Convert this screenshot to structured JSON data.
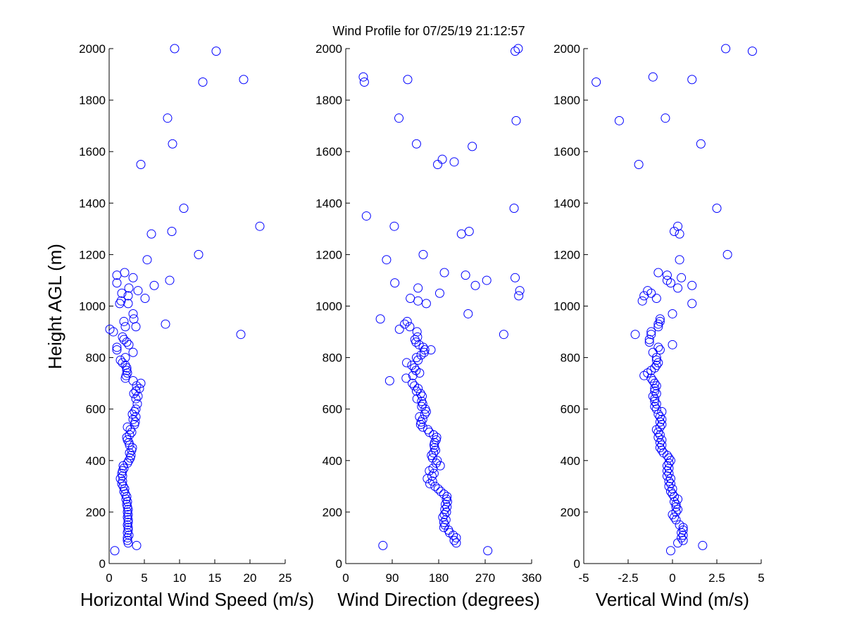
{
  "title": "Wind Profile for  07/25/19 21:12:57",
  "ylabel": "Height AGL (m)",
  "marker_color": "#0000ff",
  "chart_data": [
    {
      "type": "scatter",
      "xlabel": "Horizontal Wind Speed (m/s)",
      "xlim": [
        0,
        25
      ],
      "ylim": [
        0,
        2000
      ],
      "xticks": [
        "0",
        "5",
        "10",
        "15",
        "20",
        "25"
      ],
      "yticks": [
        "0",
        "200",
        "400",
        "600",
        "800",
        "1000",
        "1200",
        "1400",
        "1600",
        "1800",
        "2000"
      ],
      "points": [
        [
          0.8,
          50
        ],
        [
          3.9,
          70
        ],
        [
          2.7,
          80
        ],
        [
          2.6,
          90
        ],
        [
          2.6,
          100
        ],
        [
          2.8,
          110
        ],
        [
          2.6,
          120
        ],
        [
          2.7,
          130
        ],
        [
          2.7,
          140
        ],
        [
          2.6,
          150
        ],
        [
          2.7,
          160
        ],
        [
          2.7,
          170
        ],
        [
          2.6,
          180
        ],
        [
          2.7,
          190
        ],
        [
          2.6,
          200
        ],
        [
          2.7,
          210
        ],
        [
          2.6,
          220
        ],
        [
          2.5,
          230
        ],
        [
          2.6,
          240
        ],
        [
          2.4,
          250
        ],
        [
          2.5,
          260
        ],
        [
          2.3,
          270
        ],
        [
          2.1,
          280
        ],
        [
          2.2,
          290
        ],
        [
          2.0,
          300
        ],
        [
          1.8,
          310
        ],
        [
          1.9,
          320
        ],
        [
          1.6,
          330
        ],
        [
          1.9,
          340
        ],
        [
          1.8,
          350
        ],
        [
          1.9,
          360
        ],
        [
          2.1,
          370
        ],
        [
          2.0,
          380
        ],
        [
          2.6,
          390
        ],
        [
          2.8,
          400
        ],
        [
          3.0,
          410
        ],
        [
          3.1,
          420
        ],
        [
          2.9,
          430
        ],
        [
          3.2,
          440
        ],
        [
          3.3,
          450
        ],
        [
          2.9,
          460
        ],
        [
          2.8,
          470
        ],
        [
          2.6,
          480
        ],
        [
          2.5,
          490
        ],
        [
          2.9,
          500
        ],
        [
          3.2,
          510
        ],
        [
          3.0,
          520
        ],
        [
          2.6,
          530
        ],
        [
          3.6,
          540
        ],
        [
          3.7,
          550
        ],
        [
          3.4,
          560
        ],
        [
          3.8,
          570
        ],
        [
          3.3,
          580
        ],
        [
          3.6,
          590
        ],
        [
          3.8,
          600
        ],
        [
          4.0,
          620
        ],
        [
          3.8,
          640
        ],
        [
          4.1,
          650
        ],
        [
          3.5,
          660
        ],
        [
          3.8,
          670
        ],
        [
          4.3,
          680
        ],
        [
          3.9,
          690
        ],
        [
          4.5,
          700
        ],
        [
          3.4,
          710
        ],
        [
          2.3,
          720
        ],
        [
          2.4,
          730
        ],
        [
          2.6,
          740
        ],
        [
          2.5,
          750
        ],
        [
          2.5,
          760
        ],
        [
          2.3,
          770
        ],
        [
          1.9,
          780
        ],
        [
          1.6,
          790
        ],
        [
          2.3,
          800
        ],
        [
          3.4,
          820
        ],
        [
          1.1,
          830
        ],
        [
          1.1,
          840
        ],
        [
          2.8,
          850
        ],
        [
          2.5,
          860
        ],
        [
          2.1,
          870
        ],
        [
          1.9,
          880
        ],
        [
          18.7,
          890
        ],
        [
          0.6,
          900
        ],
        [
          0.1,
          910
        ],
        [
          2.3,
          920
        ],
        [
          3.8,
          920
        ],
        [
          8.0,
          930
        ],
        [
          2.1,
          940
        ],
        [
          3.5,
          950
        ],
        [
          3.4,
          970
        ],
        [
          1.5,
          1010
        ],
        [
          2.7,
          1010
        ],
        [
          1.7,
          1020
        ],
        [
          5.1,
          1030
        ],
        [
          2.7,
          1040
        ],
        [
          1.8,
          1050
        ],
        [
          4.1,
          1060
        ],
        [
          2.8,
          1070
        ],
        [
          6.4,
          1080
        ],
        [
          1.1,
          1090
        ],
        [
          8.6,
          1100
        ],
        [
          3.4,
          1110
        ],
        [
          1.1,
          1120
        ],
        [
          2.2,
          1130
        ],
        [
          12.7,
          1200
        ],
        [
          5.4,
          1180
        ],
        [
          6.0,
          1280
        ],
        [
          8.9,
          1290
        ],
        [
          21.4,
          1310
        ],
        [
          10.6,
          1380
        ],
        [
          4.5,
          1550
        ],
        [
          9.0,
          1630
        ],
        [
          8.3,
          1730
        ],
        [
          13.3,
          1870
        ],
        [
          19.1,
          1880
        ],
        [
          15.2,
          1990
        ],
        [
          9.3,
          2000
        ]
      ]
    },
    {
      "type": "scatter",
      "xlabel": "Wind Direction (degrees)",
      "xlim": [
        0,
        360
      ],
      "ylim": [
        0,
        2000
      ],
      "xticks": [
        "0",
        "90",
        "180",
        "270",
        "360"
      ],
      "yticks": [
        "0",
        "200",
        "400",
        "600",
        "800",
        "1000",
        "1200",
        "1400",
        "1600",
        "1800",
        "2000"
      ],
      "points": [
        [
          275,
          50
        ],
        [
          72,
          70
        ],
        [
          214,
          80
        ],
        [
          210,
          90
        ],
        [
          214,
          100
        ],
        [
          208,
          110
        ],
        [
          201,
          120
        ],
        [
          199,
          130
        ],
        [
          190,
          140
        ],
        [
          192,
          150
        ],
        [
          190,
          160
        ],
        [
          194,
          170
        ],
        [
          188,
          180
        ],
        [
          191,
          190
        ],
        [
          195,
          200
        ],
        [
          192,
          210
        ],
        [
          196,
          220
        ],
        [
          193,
          230
        ],
        [
          197,
          240
        ],
        [
          195,
          250
        ],
        [
          196,
          260
        ],
        [
          190,
          270
        ],
        [
          184,
          280
        ],
        [
          179,
          290
        ],
        [
          173,
          300
        ],
        [
          163,
          310
        ],
        [
          168,
          320
        ],
        [
          158,
          330
        ],
        [
          167,
          340
        ],
        [
          171,
          350
        ],
        [
          162,
          360
        ],
        [
          169,
          370
        ],
        [
          183,
          380
        ],
        [
          175,
          390
        ],
        [
          177,
          400
        ],
        [
          168,
          410
        ],
        [
          166,
          420
        ],
        [
          170,
          430
        ],
        [
          174,
          440
        ],
        [
          172,
          450
        ],
        [
          171,
          460
        ],
        [
          172,
          470
        ],
        [
          175,
          480
        ],
        [
          176,
          490
        ],
        [
          170,
          500
        ],
        [
          162,
          510
        ],
        [
          159,
          520
        ],
        [
          149,
          530
        ],
        [
          145,
          540
        ],
        [
          146,
          550
        ],
        [
          149,
          560
        ],
        [
          143,
          570
        ],
        [
          153,
          580
        ],
        [
          156,
          590
        ],
        [
          154,
          600
        ],
        [
          147,
          610
        ],
        [
          149,
          620
        ],
        [
          147,
          630
        ],
        [
          138,
          640
        ],
        [
          148,
          650
        ],
        [
          145,
          660
        ],
        [
          137,
          670
        ],
        [
          140,
          680
        ],
        [
          133,
          690
        ],
        [
          129,
          700
        ],
        [
          85,
          710
        ],
        [
          117,
          720
        ],
        [
          130,
          730
        ],
        [
          143,
          740
        ],
        [
          136,
          750
        ],
        [
          133,
          760
        ],
        [
          128,
          770
        ],
        [
          118,
          780
        ],
        [
          140,
          790
        ],
        [
          137,
          800
        ],
        [
          146,
          810
        ],
        [
          152,
          820
        ],
        [
          153,
          830
        ],
        [
          165,
          830
        ],
        [
          150,
          840
        ],
        [
          142,
          850
        ],
        [
          136,
          860
        ],
        [
          134,
          870
        ],
        [
          139,
          880
        ],
        [
          306,
          890
        ],
        [
          138,
          900
        ],
        [
          104,
          910
        ],
        [
          124,
          920
        ],
        [
          114,
          930
        ],
        [
          119,
          940
        ],
        [
          67,
          950
        ],
        [
          237,
          970
        ],
        [
          156,
          1010
        ],
        [
          140,
          1020
        ],
        [
          125,
          1030
        ],
        [
          335,
          1040
        ],
        [
          182,
          1050
        ],
        [
          337,
          1060
        ],
        [
          140,
          1070
        ],
        [
          251,
          1080
        ],
        [
          95,
          1090
        ],
        [
          273,
          1100
        ],
        [
          328,
          1110
        ],
        [
          232,
          1120
        ],
        [
          191,
          1130
        ],
        [
          79,
          1180
        ],
        [
          150,
          1200
        ],
        [
          224,
          1280
        ],
        [
          239,
          1290
        ],
        [
          94,
          1310
        ],
        [
          40,
          1350
        ],
        [
          326,
          1380
        ],
        [
          178,
          1550
        ],
        [
          210,
          1560
        ],
        [
          187,
          1570
        ],
        [
          245,
          1620
        ],
        [
          137,
          1630
        ],
        [
          330,
          1720
        ],
        [
          103,
          1730
        ],
        [
          36,
          1870
        ],
        [
          120,
          1880
        ],
        [
          34,
          1890
        ],
        [
          328,
          1990
        ],
        [
          334,
          2000
        ]
      ]
    },
    {
      "type": "scatter",
      "xlabel": "Vertical Wind (m/s)",
      "xlim": [
        -5,
        5
      ],
      "ylim": [
        0,
        2000
      ],
      "xticks": [
        "-5",
        "-2.5",
        "0",
        "2.5",
        "5"
      ],
      "yticks": [
        "0",
        "200",
        "400",
        "600",
        "800",
        "1000",
        "1200",
        "1400",
        "1600",
        "1800",
        "2000"
      ],
      "points": [
        [
          -0.1,
          50
        ],
        [
          1.7,
          70
        ],
        [
          0.3,
          80
        ],
        [
          0.6,
          90
        ],
        [
          0.5,
          100
        ],
        [
          0.6,
          110
        ],
        [
          0.5,
          120
        ],
        [
          0.6,
          130
        ],
        [
          0.6,
          140
        ],
        [
          0.4,
          150
        ],
        [
          0.2,
          170
        ],
        [
          0.1,
          180
        ],
        [
          0.0,
          190
        ],
        [
          0.2,
          200
        ],
        [
          0.3,
          210
        ],
        [
          0.2,
          220
        ],
        [
          0.2,
          230
        ],
        [
          0.1,
          240
        ],
        [
          0.3,
          250
        ],
        [
          0.1,
          260
        ],
        [
          0.0,
          270
        ],
        [
          -0.1,
          280
        ],
        [
          0.0,
          290
        ],
        [
          -0.2,
          300
        ],
        [
          -0.1,
          310
        ],
        [
          -0.2,
          320
        ],
        [
          -0.1,
          330
        ],
        [
          -0.3,
          340
        ],
        [
          -0.2,
          350
        ],
        [
          -0.3,
          360
        ],
        [
          -0.2,
          370
        ],
        [
          -0.3,
          380
        ],
        [
          -0.2,
          390
        ],
        [
          -0.1,
          400
        ],
        [
          -0.2,
          410
        ],
        [
          -0.3,
          420
        ],
        [
          -0.5,
          430
        ],
        [
          -0.6,
          440
        ],
        [
          -0.7,
          450
        ],
        [
          -0.6,
          460
        ],
        [
          -0.7,
          470
        ],
        [
          -0.6,
          480
        ],
        [
          -0.8,
          490
        ],
        [
          -0.7,
          500
        ],
        [
          -0.8,
          510
        ],
        [
          -0.9,
          520
        ],
        [
          -0.7,
          530
        ],
        [
          -0.6,
          540
        ],
        [
          -0.7,
          550
        ],
        [
          -0.6,
          560
        ],
        [
          -0.7,
          570
        ],
        [
          -0.8,
          580
        ],
        [
          -0.6,
          590
        ],
        [
          -0.9,
          600
        ],
        [
          -1.0,
          610
        ],
        [
          -0.9,
          620
        ],
        [
          -1.0,
          630
        ],
        [
          -1.0,
          640
        ],
        [
          -1.1,
          650
        ],
        [
          -0.9,
          660
        ],
        [
          -1.0,
          670
        ],
        [
          -1.0,
          680
        ],
        [
          -0.9,
          690
        ],
        [
          -1.0,
          700
        ],
        [
          -1.1,
          710
        ],
        [
          -1.2,
          720
        ],
        [
          -1.6,
          730
        ],
        [
          -1.4,
          740
        ],
        [
          -1.2,
          750
        ],
        [
          -1.0,
          760
        ],
        [
          -0.9,
          770
        ],
        [
          -0.8,
          780
        ],
        [
          -0.9,
          790
        ],
        [
          -0.9,
          800
        ],
        [
          -1.1,
          820
        ],
        [
          -0.7,
          830
        ],
        [
          -0.8,
          840
        ],
        [
          0.0,
          850
        ],
        [
          -1.3,
          860
        ],
        [
          -1.3,
          870
        ],
        [
          -2.1,
          890
        ],
        [
          -1.2,
          890
        ],
        [
          -1.2,
          900
        ],
        [
          -0.8,
          920
        ],
        [
          -0.8,
          930
        ],
        [
          -0.7,
          940
        ],
        [
          -0.7,
          950
        ],
        [
          0.0,
          970
        ],
        [
          -1.7,
          1020
        ],
        [
          1.1,
          1010
        ],
        [
          -1.6,
          1040
        ],
        [
          -0.9,
          1030
        ],
        [
          -1.2,
          1050
        ],
        [
          -1.4,
          1060
        ],
        [
          0.3,
          1070
        ],
        [
          1.1,
          1080
        ],
        [
          -0.1,
          1090
        ],
        [
          -0.3,
          1100
        ],
        [
          0.5,
          1110
        ],
        [
          -0.3,
          1120
        ],
        [
          -0.8,
          1130
        ],
        [
          0.4,
          1180
        ],
        [
          3.1,
          1200
        ],
        [
          0.4,
          1280
        ],
        [
          0.1,
          1290
        ],
        [
          0.3,
          1310
        ],
        [
          2.5,
          1380
        ],
        [
          -1.9,
          1550
        ],
        [
          1.6,
          1630
        ],
        [
          -3.0,
          1720
        ],
        [
          -0.4,
          1730
        ],
        [
          -4.3,
          1870
        ],
        [
          1.1,
          1880
        ],
        [
          -1.1,
          1890
        ],
        [
          4.5,
          1990
        ],
        [
          3.0,
          2000
        ]
      ]
    }
  ]
}
